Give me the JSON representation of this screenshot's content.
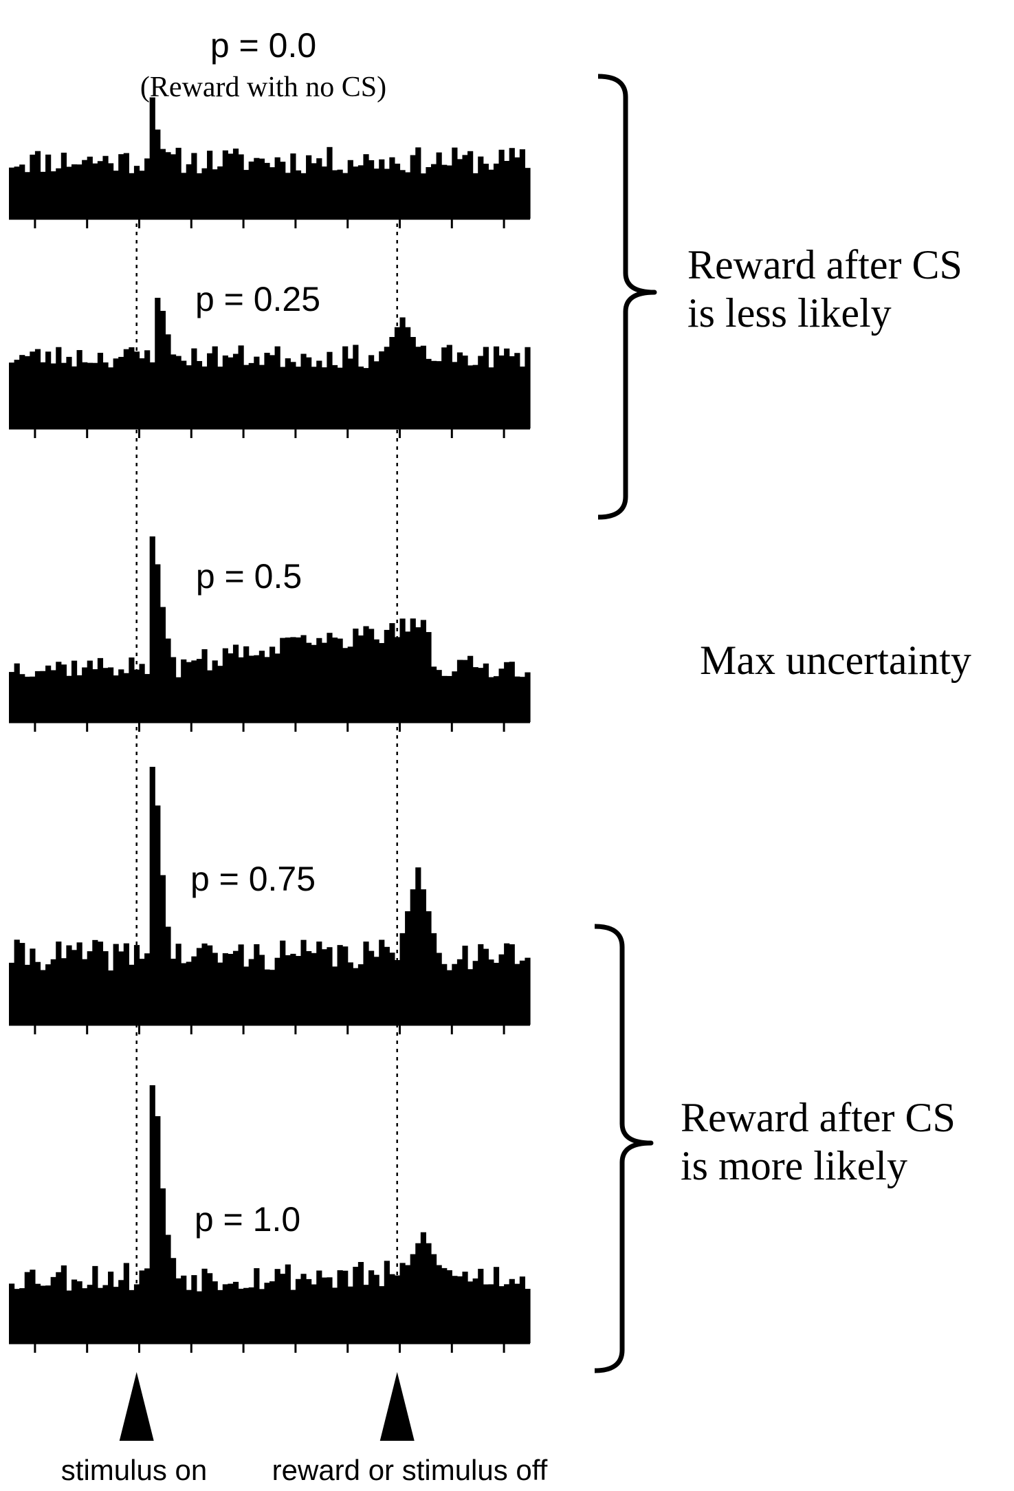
{
  "chart_data": {
    "type": "bar",
    "description_style": "peri-stimulus time histograms, one panel per reward probability",
    "colors": {
      "bars": "#000000",
      "background": "#ffffff"
    },
    "grid": false,
    "x_bins": 100,
    "x_ticks": 10,
    "stimulus_on_bin": 24,
    "reward_bin": 74,
    "event_labels": {
      "stimulus_on": "stimulus on",
      "reward_off": "reward or stimulus off"
    },
    "panels": [
      {
        "label": "p = 0.0",
        "sublabel": "(Reward with no CS)",
        "seed": 11,
        "baseline": 0.47,
        "noise": 0.11,
        "peaks": [
          {
            "bin": 27,
            "height": 0.98
          },
          {
            "bin": 28,
            "height": 0.72
          }
        ],
        "ramp": null,
        "reward_bump": null
      },
      {
        "label": "p = 0.25",
        "sublabel": "",
        "seed": 23,
        "baseline": 0.55,
        "noise": 0.09,
        "peaks": [
          {
            "bin": 28,
            "height": 1.0
          },
          {
            "bin": 29,
            "height": 0.9
          },
          {
            "bin": 30,
            "height": 0.72
          }
        ],
        "ramp": null,
        "reward_bump": {
          "bin": 75,
          "height": 0.85,
          "width": 3
        }
      },
      {
        "label": "p = 0.5",
        "sublabel": "",
        "seed": 37,
        "baseline": 0.3,
        "noise": 0.06,
        "peaks": [
          {
            "bin": 27,
            "height": 1.0
          },
          {
            "bin": 28,
            "height": 0.85
          },
          {
            "bin": 29,
            "height": 0.62
          },
          {
            "bin": 30,
            "height": 0.45
          },
          {
            "bin": 31,
            "height": 0.35
          }
        ],
        "ramp": {
          "start": 36,
          "end": 80,
          "from": 0.33,
          "to": 0.52
        },
        "reward_bump": null
      },
      {
        "label": "p = 0.75",
        "sublabel": "",
        "seed": 41,
        "baseline": 0.27,
        "noise": 0.06,
        "peaks": [
          {
            "bin": 27,
            "height": 1.0
          },
          {
            "bin": 28,
            "height": 0.85
          },
          {
            "bin": 29,
            "height": 0.58
          },
          {
            "bin": 30,
            "height": 0.38
          }
        ],
        "ramp": null,
        "reward_bump": {
          "bin": 78,
          "height": 0.61,
          "width": 3
        }
      },
      {
        "label": "p = 1.0",
        "sublabel": "",
        "seed": 53,
        "baseline": 0.26,
        "noise": 0.06,
        "peaks": [
          {
            "bin": 27,
            "height": 1.0
          },
          {
            "bin": 28,
            "height": 0.88
          },
          {
            "bin": 29,
            "height": 0.6
          },
          {
            "bin": 30,
            "height": 0.42
          },
          {
            "bin": 31,
            "height": 0.33
          }
        ],
        "ramp": null,
        "reward_bump": {
          "bin": 79,
          "height": 0.43,
          "width": 3
        }
      }
    ],
    "annotations": [
      {
        "text_lines": [
          "Reward after CS",
          "is less likely"
        ],
        "spans_panels": [
          0,
          1
        ]
      },
      {
        "text_lines": [
          "Max uncertainty"
        ],
        "spans_panels": [
          2
        ]
      },
      {
        "text_lines": [
          "Reward after CS",
          "is more likely"
        ],
        "spans_panels": [
          3,
          4
        ]
      }
    ]
  }
}
